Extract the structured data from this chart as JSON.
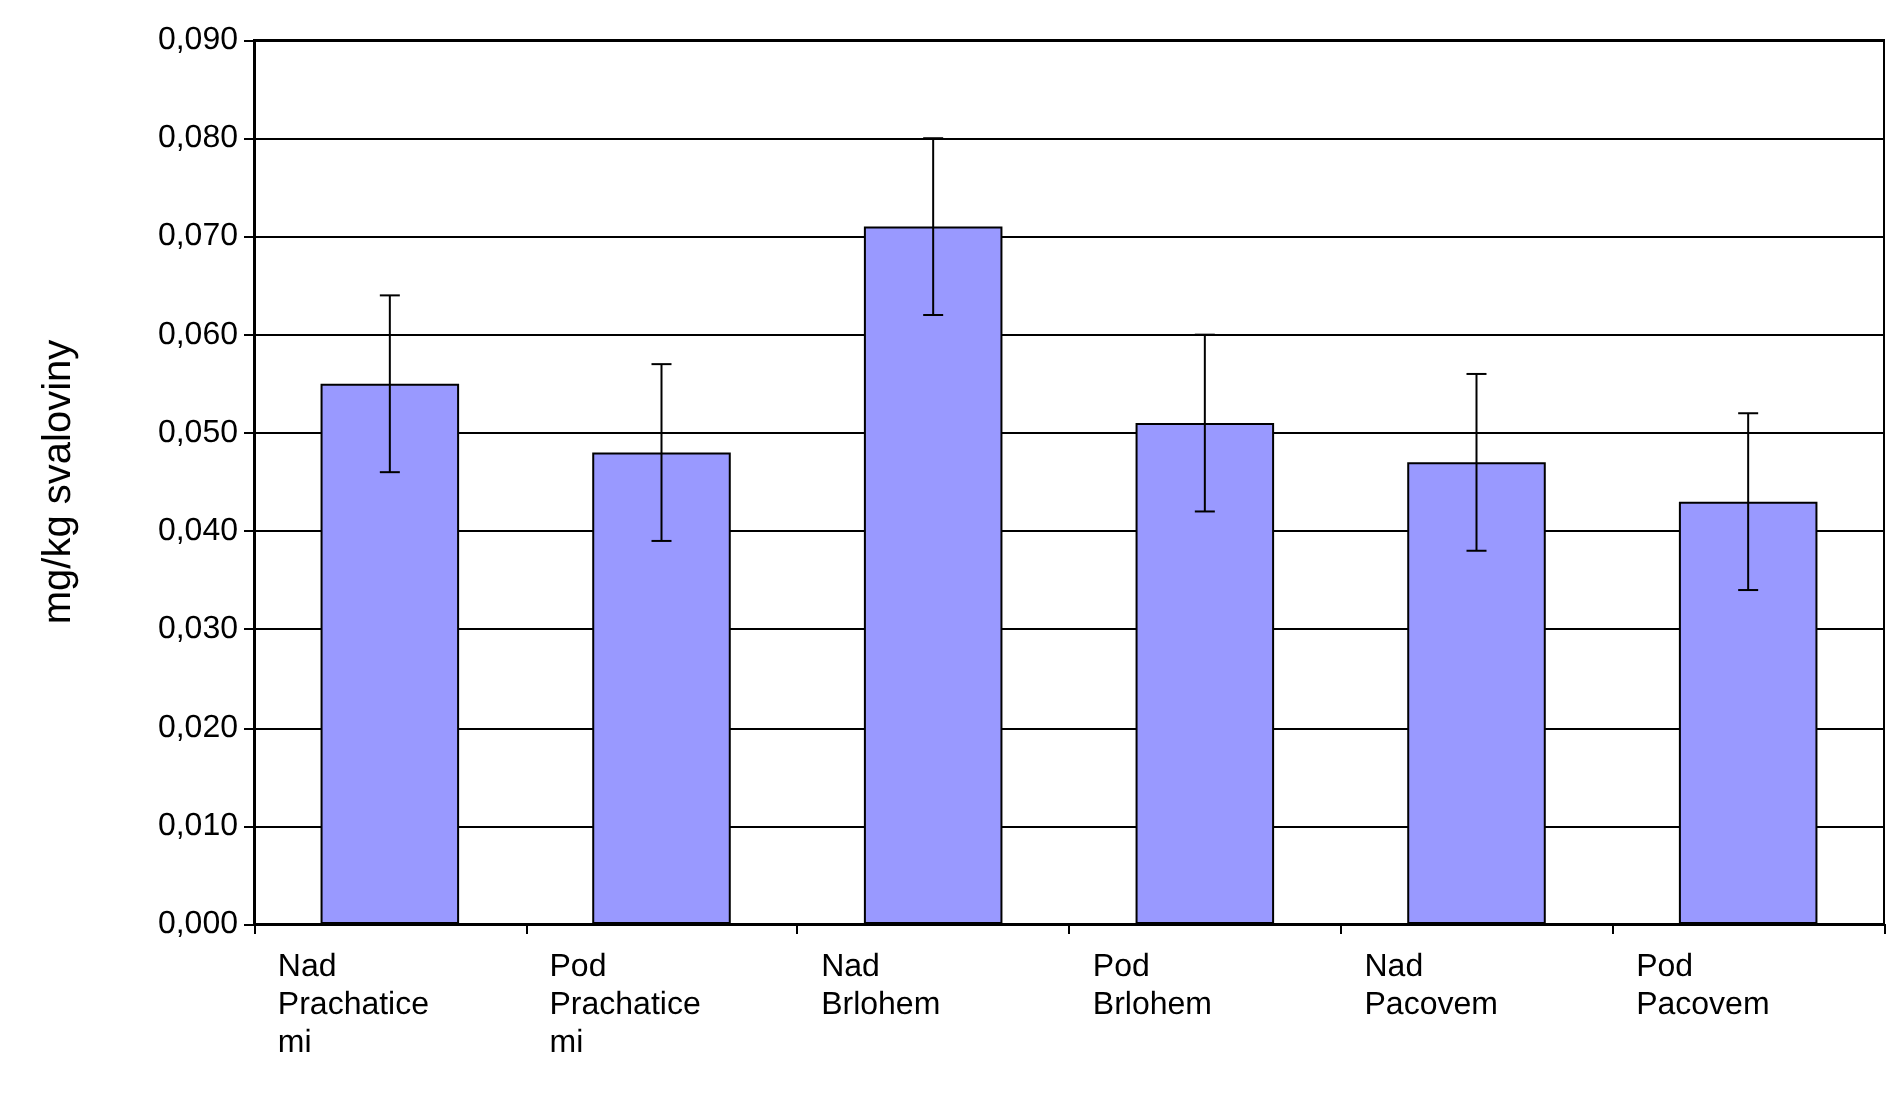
{
  "chart_data": {
    "type": "bar",
    "ylabel": "mg/kg svaloviny",
    "categories": [
      "Nad Prachaticemi",
      "Pod Prachaticemi",
      "Nad Brlohem",
      "Pod Brlohem",
      "Nad Pacovem",
      "Pod Pacovem"
    ],
    "values": [
      0.055,
      0.048,
      0.071,
      0.051,
      0.047,
      0.043
    ],
    "errors": [
      0.009,
      0.009,
      0.009,
      0.009,
      0.009,
      0.009
    ],
    "color": "#9999ff",
    "ylim": [
      0,
      0.09
    ],
    "yticks": [
      {
        "value": 0,
        "label": "0,000"
      },
      {
        "value": 0.01,
        "label": "0,010"
      },
      {
        "value": 0.02,
        "label": "0,020"
      },
      {
        "value": 0.03,
        "label": "0,030"
      },
      {
        "value": 0.04,
        "label": "0,040"
      },
      {
        "value": 0.05,
        "label": "0,050"
      },
      {
        "value": 0.06,
        "label": "0,060"
      },
      {
        "value": 0.07,
        "label": "0,070"
      },
      {
        "value": 0.08,
        "label": "0,080"
      },
      {
        "value": 0.09,
        "label": "0,090"
      }
    ],
    "grid": "y"
  }
}
